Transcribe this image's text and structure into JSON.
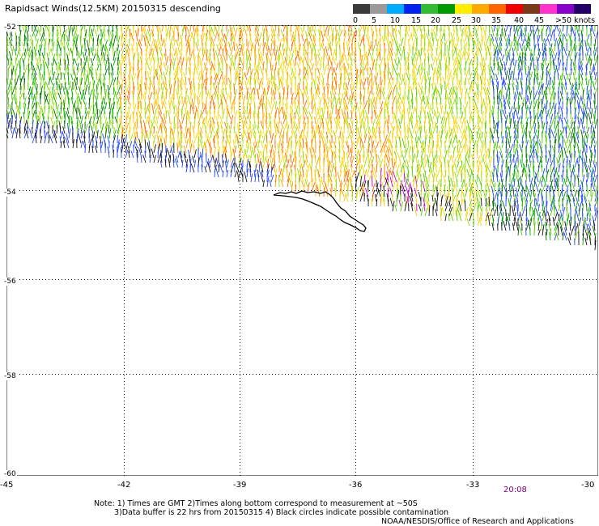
{
  "title": "Rapidsact Winds(12.5KM) 20150315 descending",
  "colorbar": {
    "colors": [
      "#3a3a3a",
      "#9a9a9a",
      "#00aaff",
      "#0022ee",
      "#33bb33",
      "#009900",
      "#ffee00",
      "#ffaa00",
      "#ff6600",
      "#ee0000",
      "#7a3a1a",
      "#ff33cc",
      "#8800cc",
      "#220066"
    ],
    "labels": [
      "0",
      "5",
      "10",
      "15",
      "20",
      "25",
      "30",
      "35",
      "40",
      "45",
      ">50 knots"
    ]
  },
  "map": {
    "lat_labels": [
      "-52",
      "-54",
      "-56",
      "-58",
      "-60"
    ],
    "lon_labels": [
      "-45",
      "-42",
      "-39",
      "-36",
      "-33",
      "-30"
    ],
    "grid": "dotted",
    "coastline": "South Georgia",
    "wind_palette": [
      "#006600",
      "#00aa00",
      "#55cc00",
      "#99dd00",
      "#eedd00",
      "#ffcc00",
      "#ff9900",
      "#ff6600",
      "#dd2200",
      "#2244ff",
      "#111111",
      "#cc00cc"
    ]
  },
  "timestamp": "20:08",
  "notes": {
    "line1": "Note: 1) Times are GMT 2)Times along bottom correspond to measurement at ~50S",
    "line2": "3)Data buffer is 22 hrs from 20150315 4) Black circles indicate possible contamination",
    "credit": "NOAA/NESDIS/Office of Research and Applications"
  }
}
